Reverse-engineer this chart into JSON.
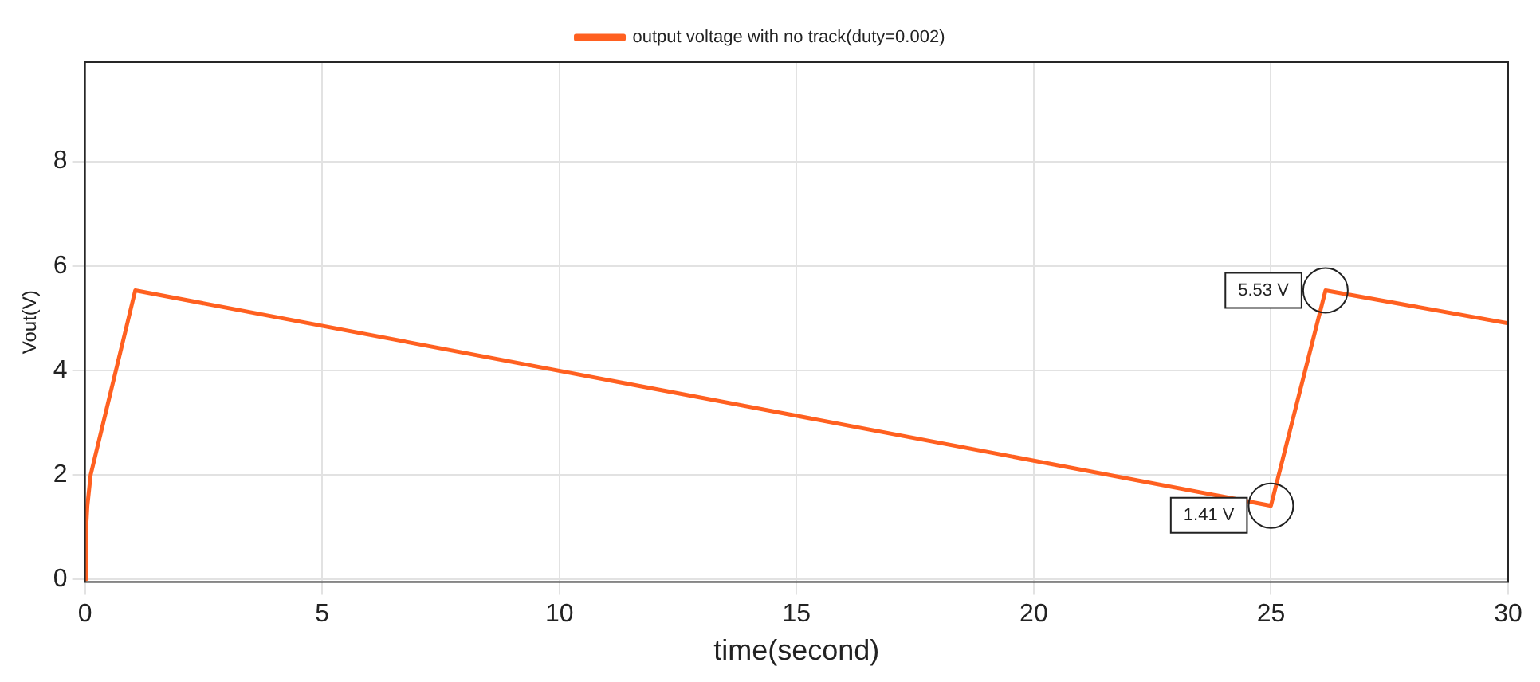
{
  "chart_data": {
    "type": "line",
    "xlabel": "time(second)",
    "ylabel": "Vout(V)",
    "x": [
      0,
      0.02,
      0.05,
      0.12,
      1.06,
      25,
      26.15,
      30
    ],
    "series": [
      {
        "name": "output voltage with no track(duty=0.002)",
        "color": "#ff6020",
        "values": [
          0,
          0.9,
          1.4,
          2.0,
          5.53,
          1.41,
          5.53,
          4.9
        ]
      }
    ],
    "xlim": [
      0,
      30
    ],
    "xticks": [
      0,
      5,
      10,
      15,
      20,
      25,
      30
    ],
    "ylim": [
      -0.05,
      9.9
    ],
    "yticks": [
      0,
      2,
      4,
      6,
      8
    ],
    "grid": true,
    "legend": "top",
    "marker": "none",
    "line_style": "solid",
    "annotations": [
      {
        "text": "1.41 V",
        "x": 25,
        "y": 1.41
      },
      {
        "text": "5.53 V",
        "x": 26.15,
        "y": 5.53
      }
    ]
  }
}
